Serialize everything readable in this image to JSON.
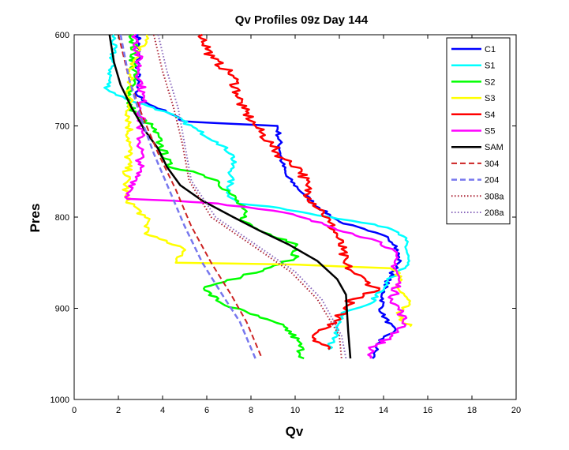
{
  "chart_data": {
    "type": "line",
    "title": "Qv Profiles 09z Day 144",
    "xlabel": "Qv",
    "ylabel": "Pres",
    "xlim": [
      0,
      20
    ],
    "ylim": [
      1000,
      600
    ],
    "y_reversed": true,
    "x_ticks": [
      "0",
      "2",
      "4",
      "6",
      "8",
      "10",
      "12",
      "14",
      "16",
      "18",
      "20"
    ],
    "y_ticks": [
      "600",
      "700",
      "800",
      "900",
      "1000"
    ],
    "grid": false,
    "legend_position": "top-right",
    "series": [
      {
        "name": "C1",
        "color": "#0000ff",
        "style": "solid",
        "width": 2.5,
        "jitter": 0.12,
        "points": [
          [
            2.9,
            600
          ],
          [
            2.9,
            640
          ],
          [
            2.8,
            665
          ],
          [
            3.3,
            675
          ],
          [
            4.2,
            685
          ],
          [
            5.0,
            695
          ],
          [
            6.5,
            697
          ],
          [
            9.2,
            700
          ],
          [
            9.4,
            740
          ],
          [
            9.6,
            755
          ],
          [
            10.4,
            775
          ],
          [
            11.1,
            790
          ],
          [
            12.0,
            805
          ],
          [
            13.3,
            815
          ],
          [
            14.2,
            822
          ],
          [
            14.6,
            832
          ],
          [
            14.7,
            850
          ],
          [
            14.3,
            865
          ],
          [
            14.0,
            880
          ],
          [
            13.9,
            905
          ],
          [
            14.5,
            925
          ],
          [
            13.8,
            935
          ],
          [
            13.5,
            955
          ]
        ]
      },
      {
        "name": "S1",
        "color": "#00ffff",
        "style": "solid",
        "width": 2.5,
        "jitter": 0.15,
        "points": [
          [
            1.8,
            600
          ],
          [
            1.7,
            635
          ],
          [
            1.5,
            660
          ],
          [
            2.3,
            670
          ],
          [
            3.6,
            680
          ],
          [
            4.6,
            690
          ],
          [
            5.6,
            705
          ],
          [
            6.5,
            718
          ],
          [
            7.2,
            732
          ],
          [
            7.1,
            755
          ],
          [
            7.0,
            775
          ],
          [
            7.4,
            785
          ],
          [
            9.3,
            790
          ],
          [
            11.6,
            800
          ],
          [
            13.6,
            808
          ],
          [
            14.5,
            815
          ],
          [
            15.0,
            825
          ],
          [
            15.1,
            850
          ],
          [
            14.2,
            870
          ],
          [
            13.4,
            895
          ],
          [
            12.1,
            905
          ],
          [
            11.9,
            925
          ],
          [
            11.5,
            945
          ]
        ]
      },
      {
        "name": "S2",
        "color": "#00ff00",
        "style": "solid",
        "width": 2.5,
        "jitter": 0.2,
        "points": [
          [
            2.7,
            600
          ],
          [
            2.7,
            650
          ],
          [
            2.4,
            675
          ],
          [
            2.9,
            690
          ],
          [
            3.5,
            700
          ],
          [
            3.9,
            720
          ],
          [
            4.3,
            745
          ],
          [
            5.4,
            750
          ],
          [
            6.5,
            760
          ],
          [
            7.1,
            775
          ],
          [
            7.6,
            790
          ],
          [
            7.7,
            805
          ],
          [
            8.4,
            815
          ],
          [
            9.6,
            825
          ],
          [
            10.1,
            830
          ],
          [
            10.0,
            845
          ],
          [
            8.9,
            855
          ],
          [
            7.6,
            865
          ],
          [
            6.2,
            875
          ],
          [
            5.9,
            880
          ],
          [
            6.7,
            895
          ],
          [
            8.4,
            910
          ],
          [
            9.5,
            920
          ],
          [
            10.1,
            935
          ],
          [
            10.4,
            955
          ]
        ]
      },
      {
        "name": "S3",
        "color": "#ffff00",
        "style": "solid",
        "width": 2.5,
        "jitter": 0.2,
        "points": [
          [
            3.3,
            600
          ],
          [
            2.5,
            640
          ],
          [
            2.5,
            680
          ],
          [
            2.5,
            720
          ],
          [
            2.3,
            778
          ],
          [
            3.2,
            800
          ],
          [
            3.4,
            820
          ],
          [
            4.2,
            828
          ],
          [
            4.8,
            832
          ],
          [
            4.9,
            840
          ],
          [
            4.6,
            850
          ],
          [
            10.0,
            852
          ],
          [
            14.3,
            856
          ],
          [
            14.8,
            865
          ],
          [
            14.7,
            880
          ],
          [
            15.2,
            892
          ],
          [
            14.6,
            905
          ],
          [
            15.2,
            920
          ]
        ]
      },
      {
        "name": "S4",
        "color": "#ff0000",
        "style": "solid",
        "width": 2.5,
        "jitter": 0.25,
        "points": [
          [
            5.8,
            600
          ],
          [
            6.2,
            625
          ],
          [
            7.2,
            645
          ],
          [
            7.4,
            665
          ],
          [
            7.6,
            680
          ],
          [
            8.2,
            700
          ],
          [
            8.9,
            720
          ],
          [
            9.4,
            735
          ],
          [
            10.3,
            748
          ],
          [
            10.5,
            765
          ],
          [
            10.7,
            780
          ],
          [
            11.3,
            795
          ],
          [
            11.5,
            805
          ],
          [
            11.9,
            820
          ],
          [
            12.1,
            835
          ],
          [
            12.2,
            850
          ],
          [
            12.6,
            860
          ],
          [
            13.2,
            870
          ],
          [
            13.8,
            880
          ],
          [
            12.6,
            890
          ],
          [
            12.2,
            900
          ],
          [
            12.0,
            910
          ],
          [
            11.6,
            920
          ],
          [
            10.8,
            930
          ],
          [
            11.5,
            945
          ]
        ]
      },
      {
        "name": "S5",
        "color": "#ff00ff",
        "style": "solid",
        "width": 2.5,
        "jitter": 0.2,
        "points": [
          [
            2.8,
            600
          ],
          [
            3.0,
            650
          ],
          [
            3.1,
            665
          ],
          [
            3.0,
            700
          ],
          [
            3.0,
            740
          ],
          [
            2.8,
            760
          ],
          [
            2.4,
            780
          ],
          [
            4.5,
            782
          ],
          [
            6.5,
            785
          ],
          [
            9.5,
            795
          ],
          [
            11.3,
            808
          ],
          [
            12.6,
            818
          ],
          [
            13.7,
            826
          ],
          [
            14.4,
            835
          ],
          [
            14.5,
            850
          ],
          [
            14.7,
            870
          ],
          [
            14.4,
            890
          ],
          [
            14.8,
            905
          ],
          [
            15.0,
            918
          ],
          [
            14.4,
            930
          ],
          [
            13.4,
            945
          ],
          [
            13.4,
            955
          ]
        ]
      },
      {
        "name": "SAM",
        "color": "#000000",
        "style": "solid",
        "width": 2.5,
        "jitter": 0,
        "points": [
          [
            1.6,
            600
          ],
          [
            1.8,
            630
          ],
          [
            2.1,
            655
          ],
          [
            2.6,
            680
          ],
          [
            3.2,
            705
          ],
          [
            3.8,
            725
          ],
          [
            4.2,
            745
          ],
          [
            4.8,
            765
          ],
          [
            5.8,
            782
          ],
          [
            7.2,
            800
          ],
          [
            8.4,
            815
          ],
          [
            9.7,
            830
          ],
          [
            11.0,
            848
          ],
          [
            11.9,
            868
          ],
          [
            12.3,
            885
          ],
          [
            12.35,
            905
          ],
          [
            12.4,
            925
          ],
          [
            12.5,
            955
          ]
        ]
      },
      {
        "name": "304",
        "color": "#cc2222",
        "style": "dashed",
        "width": 2,
        "jitter": 0,
        "points": [
          [
            2.0,
            600
          ],
          [
            2.5,
            650
          ],
          [
            3.1,
            690
          ],
          [
            3.8,
            730
          ],
          [
            4.6,
            770
          ],
          [
            5.3,
            810
          ],
          [
            6.2,
            850
          ],
          [
            7.1,
            885
          ],
          [
            7.8,
            915
          ],
          [
            8.5,
            955
          ]
        ]
      },
      {
        "name": "204",
        "color": "#7777ee",
        "style": "dashed",
        "width": 2.5,
        "jitter": 0,
        "points": [
          [
            2.1,
            600
          ],
          [
            2.5,
            650
          ],
          [
            3.0,
            690
          ],
          [
            3.6,
            730
          ],
          [
            4.3,
            770
          ],
          [
            5.0,
            810
          ],
          [
            5.8,
            850
          ],
          [
            6.7,
            885
          ],
          [
            7.5,
            915
          ],
          [
            8.2,
            955
          ]
        ]
      },
      {
        "name": "308a",
        "color": "#aa2233",
        "style": "dotted",
        "width": 2,
        "jitter": 0,
        "points": [
          [
            3.6,
            600
          ],
          [
            4.0,
            640
          ],
          [
            4.5,
            680
          ],
          [
            4.9,
            720
          ],
          [
            5.2,
            760
          ],
          [
            6.2,
            800
          ],
          [
            8.0,
            830
          ],
          [
            9.8,
            860
          ],
          [
            11.0,
            890
          ],
          [
            12.0,
            930
          ],
          [
            12.1,
            955
          ]
        ]
      },
      {
        "name": "208a",
        "color": "#8866bb",
        "style": "dotted",
        "width": 2,
        "jitter": 0,
        "points": [
          [
            3.8,
            600
          ],
          [
            4.2,
            640
          ],
          [
            4.7,
            680
          ],
          [
            5.0,
            720
          ],
          [
            5.3,
            760
          ],
          [
            6.4,
            800
          ],
          [
            8.2,
            830
          ],
          [
            10.0,
            860
          ],
          [
            11.2,
            890
          ],
          [
            12.1,
            930
          ],
          [
            12.3,
            955
          ]
        ]
      }
    ]
  }
}
